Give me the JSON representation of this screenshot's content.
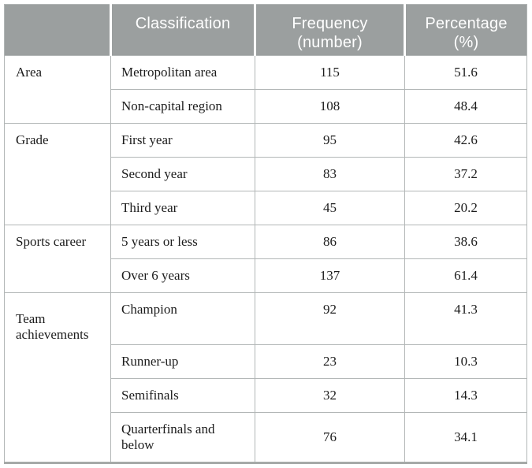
{
  "table": {
    "headers": [
      {
        "line1": "",
        "line2": ""
      },
      {
        "line1": "Classification",
        "line2": ""
      },
      {
        "line1": "Frequency",
        "line2": "(number)"
      },
      {
        "line1": "Percentage",
        "line2": "(%)"
      }
    ],
    "groups": [
      {
        "label": "Area",
        "rows": [
          {
            "classification": "Metropolitan area",
            "frequency": "115",
            "percentage": "51.6"
          },
          {
            "classification": "Non-capital region",
            "frequency": "108",
            "percentage": "48.4"
          }
        ]
      },
      {
        "label": "Grade",
        "rows": [
          {
            "classification": "First year",
            "frequency": "95",
            "percentage": "42.6"
          },
          {
            "classification": "Second year",
            "frequency": "83",
            "percentage": "37.2"
          },
          {
            "classification": "Third year",
            "frequency": "45",
            "percentage": "20.2"
          }
        ]
      },
      {
        "label": "Sports career",
        "rows": [
          {
            "classification": "5 years or less",
            "frequency": "86",
            "percentage": "38.6"
          },
          {
            "classification": "Over 6 years",
            "frequency": "137",
            "percentage": "61.4"
          }
        ]
      },
      {
        "label": "Team achievements",
        "rows": [
          {
            "classification": "Champion",
            "frequency": "92",
            "percentage": "41.3"
          },
          {
            "classification": "Runner-up",
            "frequency": "23",
            "percentage": "10.3"
          },
          {
            "classification": "Semifinals",
            "frequency": "32",
            "percentage": "14.3"
          },
          {
            "classification": "Quarterfinals and below",
            "frequency": "76",
            "percentage": "34.1"
          }
        ]
      }
    ]
  },
  "colors": {
    "header_bg": "#9b9f9f",
    "header_text": "#ffffff",
    "grid": "#b2b6b6",
    "bottom_border": "#a6aaa8",
    "body_text": "#1c1c1c",
    "page_bg": "#ffffff"
  }
}
